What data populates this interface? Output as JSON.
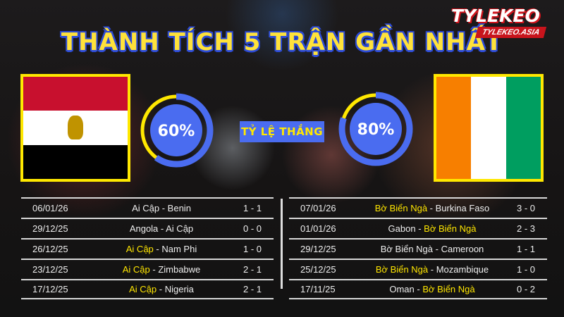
{
  "title": "THÀNH TÍCH 5 TRẬN GẦN NHẤT",
  "logo": {
    "brand": "TYLEKEO",
    "domain": "TYLEKEO.ASIA"
  },
  "colors": {
    "accent_yellow": "#ffe800",
    "accent_blue": "#4a6cf0"
  },
  "win_rate_label": "TỶ LỆ THẮNG",
  "left_team": {
    "name": "Ai Cập",
    "flag": "egypt-flag",
    "win_rate": 60,
    "win_rate_text": "60%",
    "matches": [
      {
        "date": "06/01/26",
        "home": "Ai Cập",
        "away": "Benin",
        "score": "1 - 1",
        "highlight": "none"
      },
      {
        "date": "29/12/25",
        "home": "Angola",
        "away": "Ai Cập",
        "score": "0 - 0",
        "highlight": "none"
      },
      {
        "date": "26/12/25",
        "home": "Ai Cập",
        "away": "Nam Phi",
        "score": "1 - 0",
        "highlight": "home"
      },
      {
        "date": "23/12/25",
        "home": "Ai Cập",
        "away": "Zimbabwe",
        "score": "2 - 1",
        "highlight": "home"
      },
      {
        "date": "17/12/25",
        "home": "Ai Cập",
        "away": "Nigeria",
        "score": "2 - 1",
        "highlight": "home"
      }
    ]
  },
  "right_team": {
    "name": "Bờ Biển Ngà",
    "flag": "ivory-coast-flag",
    "win_rate": 80,
    "win_rate_text": "80%",
    "matches": [
      {
        "date": "07/01/26",
        "home": "Bờ Biển Ngà",
        "away": "Burkina Faso",
        "score": "3 - 0",
        "highlight": "home"
      },
      {
        "date": "01/01/26",
        "home": "Gabon",
        "away": "Bờ Biển Ngà",
        "score": "2 - 3",
        "highlight": "away"
      },
      {
        "date": "29/12/25",
        "home": "Bờ Biển Ngà",
        "away": "Cameroon",
        "score": "1 - 1",
        "highlight": "none"
      },
      {
        "date": "25/12/25",
        "home": "Bờ Biển Ngà",
        "away": "Mozambique",
        "score": "1 - 0",
        "highlight": "home"
      },
      {
        "date": "17/11/25",
        "home": "Oman",
        "away": "Bờ Biển Ngà",
        "score": "0 - 2",
        "highlight": "away"
      }
    ]
  }
}
